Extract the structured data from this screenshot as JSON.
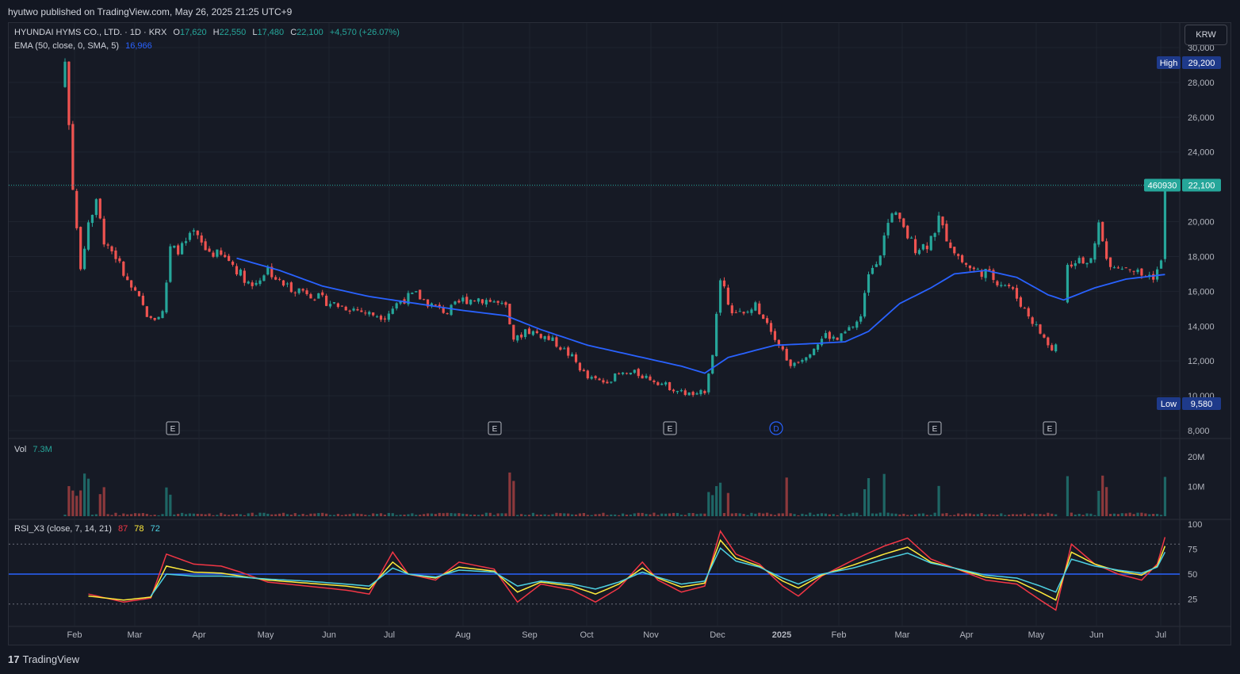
{
  "header": {
    "published": "hyutwo published on TradingView.com, May 26, 2025 21:25 UTC+9"
  },
  "legend": {
    "symbol": "HYUNDAI HYMS CO., LTD. · 1D · KRX",
    "o_label": "O",
    "o_value": "17,620",
    "h_label": "H",
    "h_value": "22,550",
    "l_label": "L",
    "l_value": "17,480",
    "c_label": "C",
    "c_value": "22,100",
    "change": "+4,570 (+26.07%)",
    "ema_label": "EMA (50, close, 0, SMA, 5)",
    "ema_value": "16,966"
  },
  "volume_legend": {
    "label": "Vol",
    "value": "7.3M"
  },
  "rsi_legend": {
    "label": "RSI_X3 (close, 7, 14, 21)",
    "v1": "87",
    "v2": "78",
    "v3": "72"
  },
  "currency_button": "KRW",
  "footer": {
    "logo_text": "TradingView",
    "logo_icon": "17"
  },
  "colors": {
    "up": "#26a69a",
    "down": "#ef5350",
    "ema": "#2962ff",
    "rsi_fast": "#f23645",
    "rsi_mid": "#ffeb3b",
    "rsi_slow": "#4dd0e1",
    "rsi_mid_line": "#2962ff",
    "price_line": "#26a69a"
  },
  "chart_data": {
    "type": "candlestick",
    "symbol": "HYUNDAI HYMS CO., LTD.",
    "price_axis": {
      "ticks": [
        8000,
        10000,
        12000,
        14000,
        16000,
        18000,
        20000,
        22000,
        24000,
        26000,
        28000,
        30000
      ],
      "tick_labels": [
        "8,000",
        "10,000",
        "12,000",
        "14,000",
        "16,000",
        "18,000",
        "20,000",
        "",
        "24,000",
        "26,000",
        "28,000",
        "30,000"
      ],
      "high_label": "High",
      "high_value": "29,200",
      "low_label": "Low",
      "low_value": "9,580",
      "last_value": "22,100",
      "last_volume_tag": "460930"
    },
    "time_axis": {
      "labels": [
        "Feb",
        "Mar",
        "Apr",
        "May",
        "Jun",
        "Jul",
        "Aug",
        "Sep",
        "Oct",
        "Nov",
        "Dec",
        "2025",
        "Feb",
        "Mar",
        "Apr",
        "May",
        "Jun",
        "Jul"
      ]
    },
    "events": [
      {
        "label": "E",
        "after_month": "Mar"
      },
      {
        "label": "E",
        "after_month": "Aug"
      },
      {
        "label": "E",
        "after_month": "Nov"
      },
      {
        "label": "D",
        "after_month": "Dec"
      },
      {
        "label": "E",
        "after_month": "Mar"
      },
      {
        "label": "E",
        "after_month": "May"
      }
    ],
    "price_series": [
      [
        0,
        29200
      ],
      [
        2,
        22000
      ],
      [
        4,
        17000
      ],
      [
        6,
        20000
      ],
      [
        8,
        21000
      ],
      [
        10,
        19000
      ],
      [
        13,
        18000
      ],
      [
        16,
        16500
      ],
      [
        19,
        15500
      ],
      [
        22,
        14300
      ],
      [
        25,
        14800
      ],
      [
        27,
        18300
      ],
      [
        30,
        18500
      ],
      [
        33,
        19300
      ],
      [
        36,
        18400
      ],
      [
        39,
        18100
      ],
      [
        42,
        17800
      ],
      [
        45,
        17000
      ],
      [
        48,
        16300
      ],
      [
        52,
        17300
      ],
      [
        55,
        16500
      ],
      [
        58,
        16200
      ],
      [
        62,
        16000
      ],
      [
        66,
        15500
      ],
      [
        70,
        15200
      ],
      [
        74,
        15000
      ],
      [
        78,
        14700
      ],
      [
        82,
        14600
      ],
      [
        86,
        15500
      ],
      [
        90,
        15800
      ],
      [
        94,
        15200
      ],
      [
        98,
        14800
      ],
      [
        102,
        15500
      ],
      [
        106,
        15600
      ],
      [
        110,
        15400
      ],
      [
        113,
        15000
      ],
      [
        115,
        13000
      ],
      [
        118,
        13800
      ],
      [
        122,
        13500
      ],
      [
        126,
        13000
      ],
      [
        130,
        12200
      ],
      [
        134,
        11000
      ],
      [
        138,
        10800
      ],
      [
        142,
        11200
      ],
      [
        146,
        11300
      ],
      [
        150,
        11000
      ],
      [
        154,
        10600
      ],
      [
        158,
        10200
      ],
      [
        162,
        10000
      ],
      [
        164,
        10300
      ],
      [
        166,
        12500
      ],
      [
        168,
        16500
      ],
      [
        171,
        15000
      ],
      [
        174,
        14600
      ],
      [
        177,
        15200
      ],
      [
        180,
        14300
      ],
      [
        183,
        13000
      ],
      [
        186,
        11800
      ],
      [
        189,
        12200
      ],
      [
        192,
        12800
      ],
      [
        195,
        13500
      ],
      [
        198,
        13200
      ],
      [
        201,
        13800
      ],
      [
        204,
        14500
      ],
      [
        206,
        17000
      ],
      [
        209,
        18300
      ],
      [
        212,
        20700
      ],
      [
        215,
        19500
      ],
      [
        218,
        18500
      ],
      [
        221,
        18700
      ],
      [
        224,
        20000
      ],
      [
        227,
        18700
      ],
      [
        230,
        17700
      ],
      [
        233,
        17200
      ],
      [
        236,
        17100
      ],
      [
        239,
        16600
      ],
      [
        242,
        16300
      ],
      [
        245,
        15300
      ],
      [
        248,
        14300
      ],
      [
        251,
        13300
      ],
      [
        253,
        12600
      ],
      [
        255,
        13300
      ],
      [
        257,
        17500
      ],
      [
        260,
        18000
      ],
      [
        263,
        17600
      ],
      [
        265,
        19800
      ],
      [
        267,
        17800
      ],
      [
        270,
        17500
      ],
      [
        273,
        17400
      ],
      [
        276,
        16900
      ],
      [
        279,
        16900
      ],
      [
        281,
        17600
      ],
      [
        282,
        22100
      ]
    ],
    "ema_series": [
      [
        44,
        17900
      ],
      [
        55,
        17200
      ],
      [
        66,
        16300
      ],
      [
        78,
        15700
      ],
      [
        90,
        15300
      ],
      [
        102,
        14900
      ],
      [
        113,
        14600
      ],
      [
        122,
        13800
      ],
      [
        134,
        12900
      ],
      [
        146,
        12300
      ],
      [
        158,
        11700
      ],
      [
        164,
        11300
      ],
      [
        170,
        12200
      ],
      [
        182,
        12900
      ],
      [
        192,
        13000
      ],
      [
        200,
        13100
      ],
      [
        206,
        13700
      ],
      [
        214,
        15300
      ],
      [
        222,
        16200
      ],
      [
        228,
        17000
      ],
      [
        236,
        17200
      ],
      [
        244,
        16800
      ],
      [
        252,
        15800
      ],
      [
        256,
        15500
      ],
      [
        264,
        16200
      ],
      [
        272,
        16700
      ],
      [
        282,
        16966
      ]
    ],
    "volume_axis": {
      "ticks": [
        10000000,
        20000000
      ],
      "tick_labels": [
        "10M",
        "20M"
      ]
    },
    "rsi_axis": {
      "ticks": [
        25,
        50,
        75,
        100
      ],
      "tick_labels": [
        "25",
        "50",
        "75",
        "100"
      ],
      "bands": [
        20,
        80
      ]
    },
    "rsi_fast_series": [
      [
        6,
        30
      ],
      [
        15,
        22
      ],
      [
        22,
        26
      ],
      [
        26,
        70
      ],
      [
        33,
        60
      ],
      [
        40,
        58
      ],
      [
        45,
        52
      ],
      [
        52,
        42
      ],
      [
        62,
        38
      ],
      [
        72,
        34
      ],
      [
        78,
        30
      ],
      [
        84,
        72
      ],
      [
        88,
        50
      ],
      [
        95,
        44
      ],
      [
        101,
        62
      ],
      [
        110,
        55
      ],
      [
        116,
        22
      ],
      [
        122,
        40
      ],
      [
        130,
        34
      ],
      [
        136,
        22
      ],
      [
        142,
        36
      ],
      [
        148,
        62
      ],
      [
        152,
        44
      ],
      [
        158,
        32
      ],
      [
        164,
        38
      ],
      [
        168,
        93
      ],
      [
        172,
        70
      ],
      [
        178,
        60
      ],
      [
        184,
        38
      ],
      [
        188,
        28
      ],
      [
        194,
        48
      ],
      [
        202,
        64
      ],
      [
        210,
        78
      ],
      [
        216,
        86
      ],
      [
        222,
        65
      ],
      [
        228,
        56
      ],
      [
        236,
        44
      ],
      [
        244,
        40
      ],
      [
        250,
        24
      ],
      [
        254,
        14
      ],
      [
        258,
        80
      ],
      [
        264,
        60
      ],
      [
        270,
        50
      ],
      [
        276,
        44
      ],
      [
        280,
        60
      ],
      [
        282,
        87
      ]
    ],
    "rsi_mid_series": [
      [
        6,
        28
      ],
      [
        15,
        24
      ],
      [
        22,
        27
      ],
      [
        26,
        58
      ],
      [
        33,
        52
      ],
      [
        40,
        51
      ],
      [
        45,
        48
      ],
      [
        52,
        44
      ],
      [
        62,
        41
      ],
      [
        72,
        38
      ],
      [
        78,
        35
      ],
      [
        84,
        62
      ],
      [
        88,
        50
      ],
      [
        95,
        46
      ],
      [
        101,
        57
      ],
      [
        110,
        53
      ],
      [
        116,
        32
      ],
      [
        122,
        42
      ],
      [
        130,
        38
      ],
      [
        136,
        30
      ],
      [
        142,
        40
      ],
      [
        148,
        56
      ],
      [
        152,
        46
      ],
      [
        158,
        37
      ],
      [
        164,
        41
      ],
      [
        168,
        84
      ],
      [
        172,
        66
      ],
      [
        178,
        58
      ],
      [
        184,
        43
      ],
      [
        188,
        36
      ],
      [
        194,
        49
      ],
      [
        202,
        59
      ],
      [
        210,
        70
      ],
      [
        216,
        77
      ],
      [
        222,
        62
      ],
      [
        228,
        56
      ],
      [
        236,
        47
      ],
      [
        244,
        43
      ],
      [
        250,
        32
      ],
      [
        254,
        24
      ],
      [
        258,
        72
      ],
      [
        264,
        60
      ],
      [
        270,
        53
      ],
      [
        276,
        49
      ],
      [
        280,
        58
      ],
      [
        282,
        78
      ]
    ],
    "rsi_slow_series": [
      [
        22,
        28
      ],
      [
        26,
        50
      ],
      [
        33,
        48
      ],
      [
        40,
        48
      ],
      [
        45,
        47
      ],
      [
        52,
        45
      ],
      [
        62,
        43
      ],
      [
        72,
        40
      ],
      [
        78,
        38
      ],
      [
        84,
        56
      ],
      [
        88,
        50
      ],
      [
        95,
        47
      ],
      [
        101,
        54
      ],
      [
        110,
        52
      ],
      [
        116,
        38
      ],
      [
        122,
        43
      ],
      [
        130,
        40
      ],
      [
        136,
        35
      ],
      [
        142,
        42
      ],
      [
        148,
        52
      ],
      [
        152,
        47
      ],
      [
        158,
        40
      ],
      [
        164,
        43
      ],
      [
        168,
        76
      ],
      [
        172,
        63
      ],
      [
        178,
        57
      ],
      [
        184,
        46
      ],
      [
        188,
        40
      ],
      [
        194,
        50
      ],
      [
        202,
        56
      ],
      [
        210,
        65
      ],
      [
        216,
        71
      ],
      [
        222,
        61
      ],
      [
        228,
        56
      ],
      [
        236,
        49
      ],
      [
        244,
        46
      ],
      [
        250,
        38
      ],
      [
        254,
        32
      ],
      [
        258,
        65
      ],
      [
        264,
        58
      ],
      [
        270,
        54
      ],
      [
        276,
        51
      ],
      [
        280,
        57
      ],
      [
        282,
        72
      ]
    ]
  }
}
